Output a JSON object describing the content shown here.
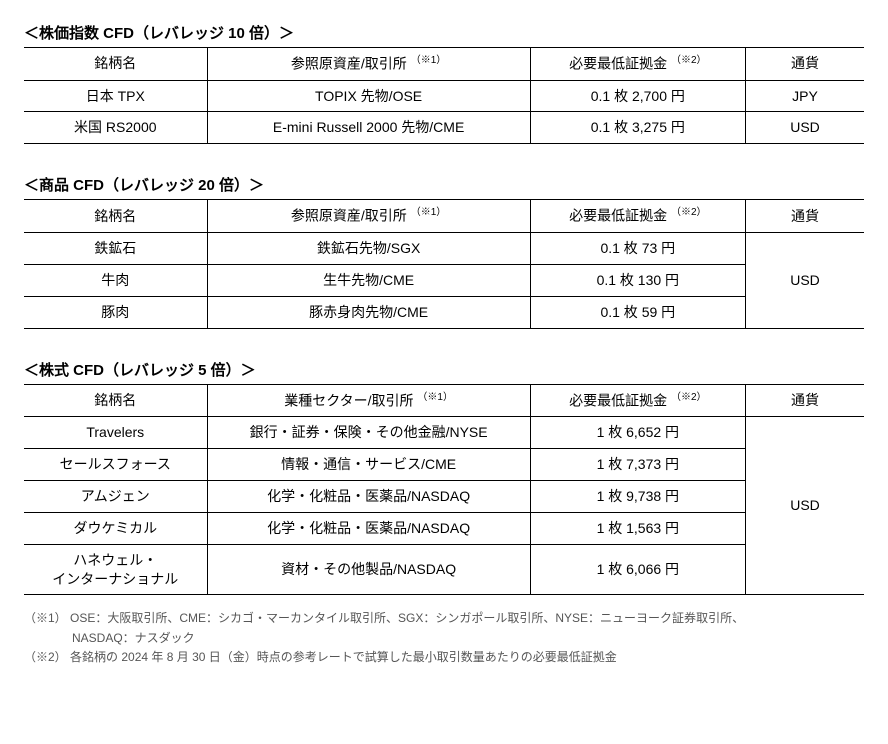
{
  "tables": [
    {
      "title": "＜株価指数 CFD（レバレッジ 10 倍）＞",
      "cols": [
        "銘柄名",
        "参照原資産/取引所",
        "必要最低証拠金",
        "通貨"
      ],
      "note1": "（※1）",
      "note2": "（※2）",
      "rows": [
        {
          "name": "日本 TPX",
          "ref": "TOPIX 先物/OSE",
          "margin": "0.1 枚 2,700 円",
          "cur": "JPY"
        },
        {
          "name": "米国 RS2000",
          "ref": "E-mini Russell 2000 先物/CME",
          "margin": "0.1 枚 3,275 円",
          "cur": "USD"
        }
      ],
      "mergeCurrency": false
    },
    {
      "title": "＜商品 CFD（レバレッジ 20 倍）＞",
      "cols": [
        "銘柄名",
        "参照原資産/取引所",
        "必要最低証拠金",
        "通貨"
      ],
      "note1": "（※1）",
      "note2": "（※2）",
      "rows": [
        {
          "name": "鉄鉱石",
          "ref": "鉄鉱石先物/SGX",
          "margin": "0.1 枚 73 円"
        },
        {
          "name": "牛肉",
          "ref": "生牛先物/CME",
          "margin": "0.1 枚 130 円"
        },
        {
          "name": "豚肉",
          "ref": "豚赤身肉先物/CME",
          "margin": "0.1 枚 59 円"
        }
      ],
      "mergeCurrency": true,
      "currency": "USD"
    },
    {
      "title": "＜株式 CFD（レバレッジ 5 倍）＞",
      "cols": [
        "銘柄名",
        "業種セクター/取引所",
        "必要最低証拠金",
        "通貨"
      ],
      "note1": "（※1）",
      "note2": "（※2）",
      "rows": [
        {
          "name": "Travelers",
          "ref": "銀行・証券・保険・その他金融/NYSE",
          "margin": "1 枚 6,652 円"
        },
        {
          "name": "セールスフォース",
          "ref": "情報・通信・サービス/CME",
          "margin": "1 枚 7,373 円"
        },
        {
          "name": "アムジェン",
          "ref": "化学・化粧品・医薬品/NASDAQ",
          "margin": "1 枚 9,738 円"
        },
        {
          "name": "ダウケミカル",
          "ref": "化学・化粧品・医薬品/NASDAQ",
          "margin": "1 枚 1,563 円"
        },
        {
          "name": "ハネウェル・\nインターナショナル",
          "ref": "資材・その他製品/NASDAQ",
          "margin": "1 枚 6,066 円"
        }
      ],
      "mergeCurrency": true,
      "currency": "USD"
    }
  ],
  "footnotes": {
    "n1_label": "（※1）",
    "n1_text": "OSE：大阪取引所、CME：シカゴ・マーカンタイル取引所、SGX：シンガポール取引所、NYSE：ニューヨーク証券取引所、",
    "n1_text2": "NASDAQ：ナスダック",
    "n2_label": "（※2）",
    "n2_text": "各銘柄の 2024 年 8 月 30 日（金）時点の参考レートで試算した最小取引数量あたりの必要最低証拠金"
  }
}
